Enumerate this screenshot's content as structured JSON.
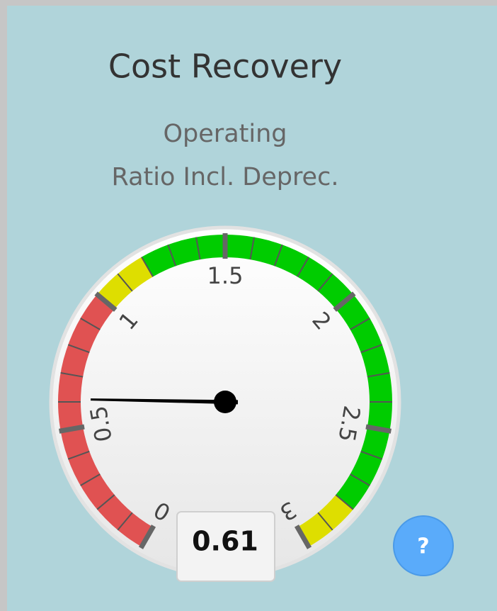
{
  "title": "Cost Recovery",
  "subtitle": [
    "Operating",
    "Ratio Incl. Deprec."
  ],
  "help_button": "?",
  "chart_data": {
    "type": "gauge",
    "value": 0.61,
    "range": [
      0,
      3
    ],
    "ticks": [
      0,
      0.5,
      1,
      1.5,
      2,
      2.5,
      3
    ],
    "minor_ticks": [
      0.1,
      0.2,
      0.3,
      0.4,
      0.6,
      0.7,
      0.8,
      0.9,
      1.1,
      1.2,
      1.3,
      1.4,
      1.6,
      1.7,
      1.8,
      1.9,
      2.1,
      2.2,
      2.3,
      2.4,
      2.6,
      2.7,
      2.8,
      2.9
    ],
    "bands": [
      {
        "from": 0,
        "to": 1,
        "color": "#e05252"
      },
      {
        "from": 1,
        "to": 1.2,
        "color": "#dede00"
      },
      {
        "from": 1.2,
        "to": 2.8,
        "color": "#00cc00"
      },
      {
        "from": 2.8,
        "to": 3,
        "color": "#dede00"
      }
    ]
  }
}
